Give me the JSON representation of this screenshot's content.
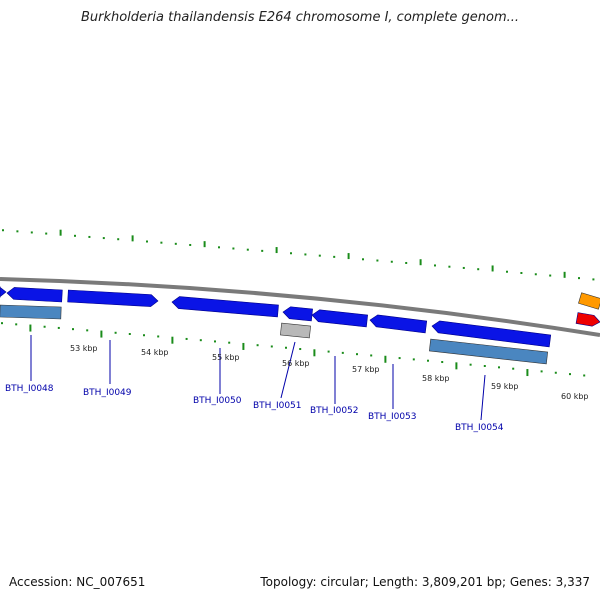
{
  "title": "Burkholderia thailandensis E264 chromosome I, complete genom...",
  "footer": {
    "accession": "Accession: NC_007651",
    "topology": "Topology: circular; Length: 3,809,201 bp; Genes: 3,337"
  },
  "colors": {
    "gene_blue": "#0a14e6",
    "rna_steel": "#4a86c0",
    "pseudo_gray": "#b8b8b8",
    "orange": "#ff9900",
    "red": "#ee0000",
    "tick_green": "#1a8c1a",
    "backbone": "#808080",
    "label_blue": "#0000aa"
  },
  "scale_labels": [
    "53 kbp",
    "54 kbp",
    "55 kbp",
    "56 kbp",
    "57 kbp",
    "58 kbp",
    "59 kbp",
    "60 kbp"
  ],
  "gene_labels": [
    "BTH_I0048",
    "BTH_I0049",
    "BTH_I0050",
    "BTH_I0051",
    "BTH_I0052",
    "BTH_I0053",
    "BTH_I0054"
  ]
}
